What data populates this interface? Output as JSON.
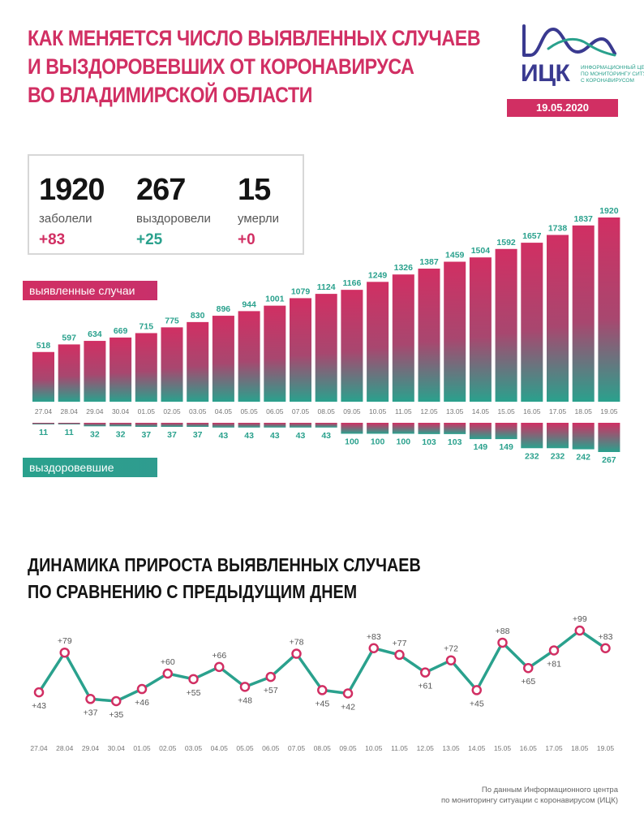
{
  "title_lines": [
    "КАК МЕНЯЕТСЯ ЧИСЛО ВЫЯВЛЕННЫХ СЛУЧАЕВ",
    "И ВЫЗДОРОВЕВШИХ ОТ КОРОНАВИРУСА",
    "ВО ВЛАДИМИРСКОЙ ОБЛАСТИ"
  ],
  "logo": {
    "name": "ИЦК",
    "caption": [
      "ИНФОРМАЦИОННЫЙ ЦЕНТР",
      "ПО МОНИТОРИНГУ СИТУАЦИИ",
      "С КОРОНАВИРУСОМ"
    ],
    "icon": "mountain-wave-logo"
  },
  "date": "19.05.2020",
  "stats": [
    {
      "value": "1920",
      "label": "заболели",
      "delta": "+83"
    },
    {
      "value": "267",
      "label": "выздоровели",
      "delta": "+25"
    },
    {
      "value": "15",
      "label": "умерли",
      "delta": "+0"
    }
  ],
  "legend": {
    "cases": "выявленные случаи",
    "recovered": "выздоровевшие"
  },
  "subtitle_lines": [
    "ДИНАМИКА ПРИРОСТА ВЫЯВЛЕННЫХ СЛУЧАЕВ",
    "ПО СРАВНЕНИЮ С ПРЕДЫДУЩИМ ДНЕМ"
  ],
  "source_lines": [
    "По данным Информационного центра",
    "по мониторингу ситуации с коронавирусом (ИЦК)"
  ],
  "colors": {
    "pink": "#d12f63",
    "teal": "#2aa18d",
    "dark": "#141414"
  },
  "chart_data": [
    {
      "type": "bar",
      "categories": [
        "27.04",
        "28.04",
        "29.04",
        "30.04",
        "01.05",
        "02.05",
        "03.05",
        "04.05",
        "05.05",
        "06.05",
        "07.05",
        "08.05",
        "09.05",
        "10.05",
        "11.05",
        "12.05",
        "13.05",
        "14.05",
        "15.05",
        "16.05",
        "17.05",
        "18.05",
        "19.05"
      ],
      "series": [
        {
          "name": "выявленные случаи",
          "values": [
            518,
            597,
            634,
            669,
            715,
            775,
            830,
            896,
            944,
            1001,
            1079,
            1124,
            1166,
            1249,
            1326,
            1387,
            1459,
            1504,
            1592,
            1657,
            1738,
            1837,
            1920
          ]
        },
        {
          "name": "выздоровевшие",
          "values": [
            11,
            11,
            32,
            32,
            37,
            37,
            37,
            43,
            43,
            43,
            43,
            43,
            100,
            100,
            100,
            103,
            103,
            149,
            149,
            232,
            232,
            242,
            267
          ]
        }
      ]
    },
    {
      "type": "line",
      "title": "ДИНАМИКА ПРИРОСТА ВЫЯВЛЕННЫХ СЛУЧАЕВ ПО СРАВНЕНИЮ С ПРЕДЫДУЩИМ ДНЕМ",
      "categories": [
        "27.04",
        "28.04",
        "29.04",
        "30.04",
        "01.05",
        "02.05",
        "03.05",
        "04.05",
        "05.05",
        "06.05",
        "07.05",
        "08.05",
        "09.05",
        "10.05",
        "11.05",
        "12.05",
        "13.05",
        "14.05",
        "15.05",
        "16.05",
        "17.05",
        "18.05",
        "19.05"
      ],
      "values": [
        43,
        79,
        37,
        35,
        46,
        60,
        55,
        66,
        48,
        57,
        78,
        45,
        42,
        83,
        77,
        61,
        72,
        45,
        88,
        65,
        81,
        99,
        83
      ],
      "labels": [
        "+43",
        "+79",
        "+37",
        "+35",
        "+46",
        "+60",
        "+55",
        "+66",
        "+48",
        "+57",
        "+78",
        "+45",
        "+42",
        "+83",
        "+77",
        "+61",
        "+72",
        "+45",
        "+88",
        "+65",
        "+81",
        "+99",
        "+83"
      ]
    }
  ]
}
